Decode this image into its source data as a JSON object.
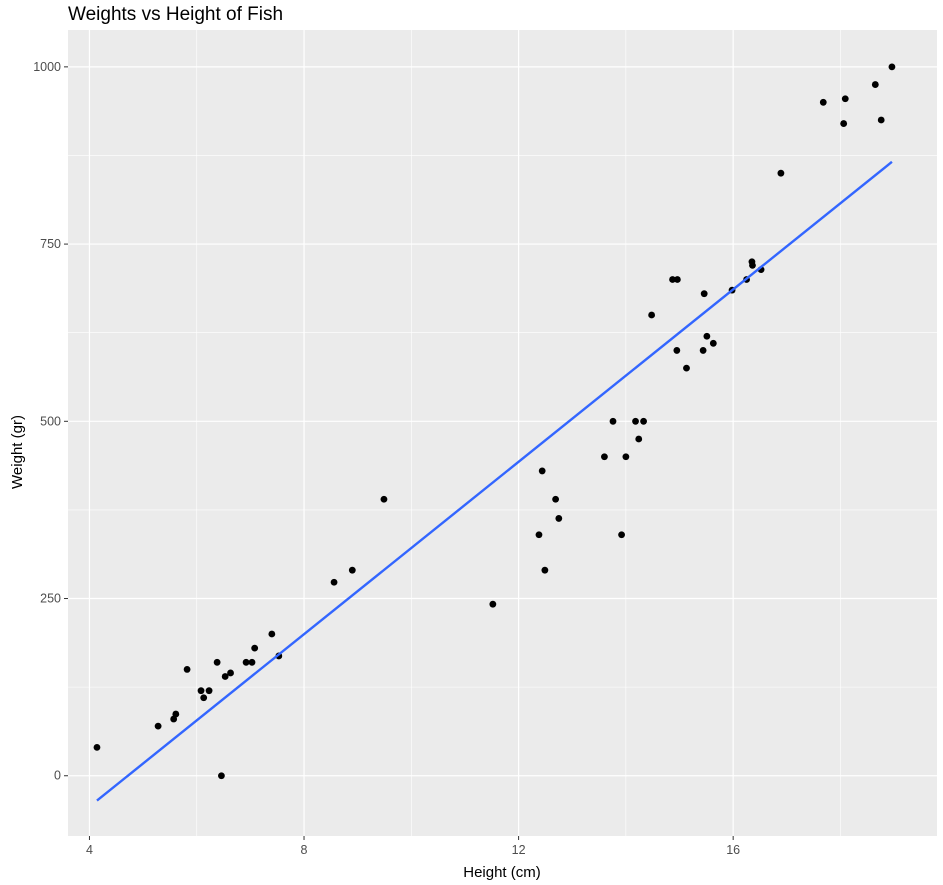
{
  "chart_data": {
    "type": "scatter",
    "title": "Weights vs Height of Fish",
    "xlabel": "Height (cm)",
    "ylabel": "Weight (gr)",
    "xlim": [
      3.6,
      19.8
    ],
    "ylim": [
      -85,
      1052
    ],
    "x_ticks": [
      4,
      8,
      12,
      16
    ],
    "x_tick_labels": [
      "4",
      "8",
      "12",
      "16"
    ],
    "x_minor_ticks": [
      6,
      10,
      14,
      18
    ],
    "y_ticks": [
      0,
      250,
      500,
      750,
      1000
    ],
    "y_tick_labels": [
      "0",
      "250",
      "500",
      "750",
      "1000"
    ],
    "y_minor_ticks": [
      125,
      375,
      625,
      875
    ],
    "grid": true,
    "legend": "none",
    "colors": {
      "panel": "#ebebeb",
      "grid": "#ffffff",
      "points": "#000000",
      "line": "#3366ff",
      "tick_text": "#4d4d4d",
      "tick_mark": "#333333"
    },
    "series": [
      {
        "type": "scatter",
        "points": [
          [
            4.14,
            40
          ],
          [
            5.28,
            70
          ],
          [
            5.57,
            80
          ],
          [
            5.61,
            87
          ],
          [
            5.82,
            150
          ],
          [
            6.08,
            120
          ],
          [
            6.13,
            110
          ],
          [
            6.23,
            120
          ],
          [
            6.38,
            160
          ],
          [
            6.46,
            0
          ],
          [
            6.53,
            140
          ],
          [
            6.63,
            145
          ],
          [
            6.92,
            160
          ],
          [
            7.03,
            160
          ],
          [
            7.08,
            180
          ],
          [
            7.4,
            200
          ],
          [
            7.53,
            169
          ],
          [
            8.56,
            273
          ],
          [
            8.9,
            290
          ],
          [
            9.49,
            390
          ],
          [
            11.52,
            242
          ],
          [
            12.38,
            340
          ],
          [
            12.44,
            430
          ],
          [
            12.49,
            290
          ],
          [
            12.69,
            390
          ],
          [
            12.75,
            363
          ],
          [
            13.6,
            450
          ],
          [
            13.76,
            500
          ],
          [
            13.92,
            340
          ],
          [
            14.0,
            450
          ],
          [
            14.18,
            500
          ],
          [
            14.24,
            475
          ],
          [
            14.33,
            500
          ],
          [
            14.48,
            650
          ],
          [
            14.87,
            700
          ],
          [
            14.95,
            600
          ],
          [
            14.96,
            700
          ],
          [
            15.13,
            575
          ],
          [
            15.44,
            600
          ],
          [
            15.46,
            680
          ],
          [
            15.51,
            620
          ],
          [
            15.63,
            610
          ],
          [
            15.98,
            685
          ],
          [
            16.25,
            700
          ],
          [
            16.35,
            725
          ],
          [
            16.36,
            720
          ],
          [
            16.52,
            714
          ],
          [
            16.89,
            850
          ],
          [
            17.68,
            950
          ],
          [
            18.06,
            920
          ],
          [
            18.09,
            955
          ],
          [
            18.65,
            975
          ],
          [
            18.76,
            925
          ],
          [
            18.96,
            1000
          ]
        ]
      },
      {
        "type": "line",
        "name": "",
        "x": [
          4.14,
          18.96
        ],
        "y": [
          -35,
          866
        ]
      }
    ]
  }
}
